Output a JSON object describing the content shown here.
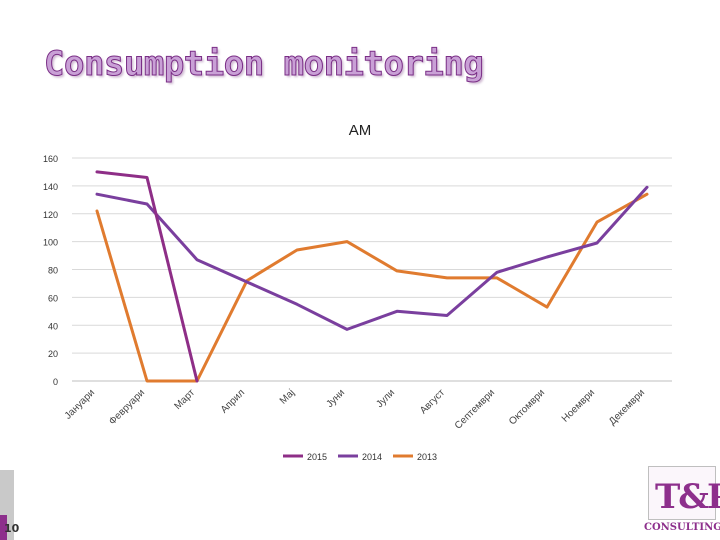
{
  "slide": {
    "title": "Consumption monitoring",
    "page_number": "10"
  },
  "logo": {
    "letters": "T&P",
    "subtitle": "CONSULTING"
  },
  "colors": {
    "series_2015": "#8e2e87",
    "series_2014": "#7a3f9e",
    "series_2013": "#e07b2f",
    "grid": "#d9d9d9",
    "title_fill": "#c9a0d6",
    "brand": "#8d2f8c"
  },
  "chart_data": {
    "type": "line",
    "title": "AM",
    "xlabel": "",
    "ylabel": "",
    "ylim": [
      0,
      160
    ],
    "yticks": [
      0,
      20,
      40,
      60,
      80,
      100,
      120,
      140,
      160
    ],
    "grid": true,
    "legend_position": "bottom",
    "categories": [
      "Јануари",
      "Февруари",
      "Март",
      "Април",
      "Мај",
      "Јуни",
      "Јули",
      "Август",
      "Септември",
      "Октомври",
      "Ноември",
      "Декември"
    ],
    "series": [
      {
        "name": "2015",
        "values": [
          150,
          146,
          0,
          null,
          null,
          null,
          null,
          null,
          null,
          null,
          null,
          null
        ]
      },
      {
        "name": "2014",
        "values": [
          134,
          127,
          87,
          71,
          55,
          37,
          50,
          47,
          78,
          89,
          99,
          139
        ]
      },
      {
        "name": "2013",
        "values": [
          122,
          0,
          0,
          72,
          94,
          100,
          79,
          74,
          74,
          53,
          114,
          134
        ]
      }
    ]
  }
}
